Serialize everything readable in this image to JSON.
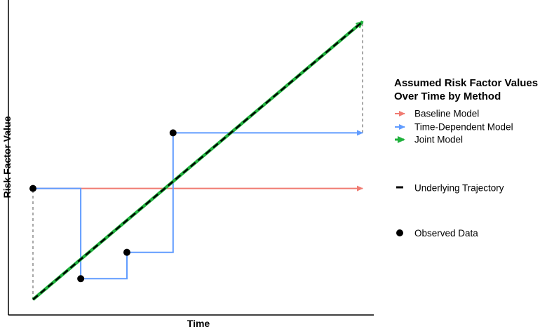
{
  "chart_data": {
    "type": "line",
    "title": "",
    "xlabel": "Time",
    "ylabel": "Risk Factor Value",
    "xlim": [
      0,
      10
    ],
    "ylim": [
      0,
      10
    ],
    "grid": false,
    "tick_labels": false,
    "legend": {
      "placement": "right",
      "title_lines": [
        "Assumed Risk Factor Values",
        "Over Time by Method"
      ],
      "entries": [
        {
          "label": "Baseline Model",
          "color": "#f07b72",
          "symbol": "arrow"
        },
        {
          "label": "Time-Dependent Model",
          "color": "#619cff",
          "symbol": "arrow"
        },
        {
          "label": "Joint Model",
          "color": "#1fb13c",
          "symbol": "arrow"
        },
        {
          "label": "Underlying Trajectory",
          "color": "#000000",
          "symbol": "dash"
        },
        {
          "label": "Observed Data",
          "color": "#000000",
          "symbol": "dot"
        }
      ]
    },
    "observed": {
      "x": [
        0.0,
        1.45,
        2.85,
        4.25
      ],
      "y": [
        4.0,
        0.75,
        1.7,
        6.0
      ]
    },
    "series": [
      {
        "name": "Baseline Model",
        "color": "#f07b72",
        "step": true,
        "x": [
          0.0,
          10.0
        ],
        "y": [
          4.0,
          4.0
        ]
      },
      {
        "name": "Time-Dependent Model",
        "color": "#619cff",
        "step": true,
        "x": [
          0.0,
          1.45,
          2.85,
          4.25,
          10.0
        ],
        "y": [
          4.0,
          0.75,
          1.7,
          6.0,
          6.0
        ]
      },
      {
        "name": "Joint Model",
        "color": "#1fb13c",
        "x": [
          0.0,
          10.0
        ],
        "y": [
          0.0,
          10.0
        ]
      },
      {
        "name": "Underlying Trajectory",
        "color": "#000000",
        "dashed": true,
        "x": [
          0.0,
          10.0
        ],
        "y": [
          0.0,
          10.0
        ]
      }
    ],
    "gaps": [
      {
        "x": 0.0,
        "y": [
          0.0,
          4.0
        ]
      },
      {
        "x": 10.0,
        "y": [
          6.0,
          10.0
        ]
      }
    ]
  }
}
